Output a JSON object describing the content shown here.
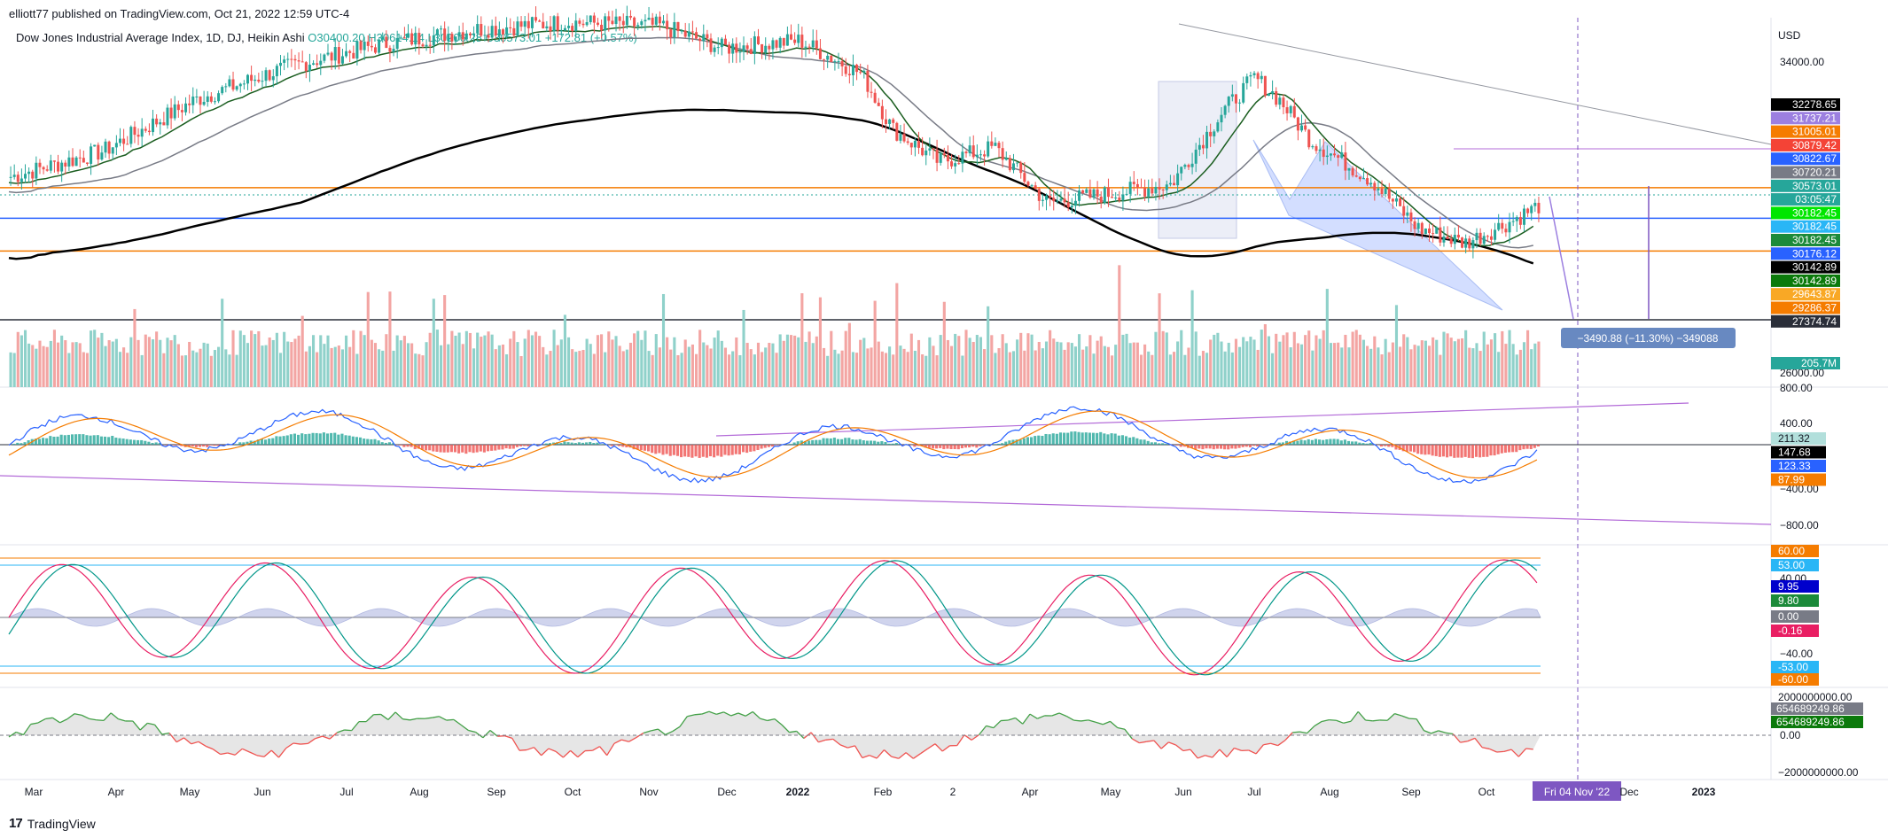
{
  "header": {
    "attribution": "elliott77 published on TradingView.com, Oct 21, 2022 12:59 UTC-4"
  },
  "legend": {
    "symbol": "Dow Jones Industrial Average Index, 1D, DJ, Heikin Ashi",
    "ohlc": "O30400.20 H30614.14 L30206.28 C30573.01 +172.81 (+0.57%)"
  },
  "footer": {
    "brand": "TradingView"
  },
  "colors": {
    "up": "#26a69a",
    "down": "#ef5350",
    "ma200": "#000000",
    "blue_line": "#2962ff",
    "orange_line": "#f57c00",
    "purple": "#b36bd8"
  },
  "chart_data": [
    {
      "type": "candlestick",
      "title": "Dow Jones Industrial Average Index, 1D, DJ, Heikin Ashi",
      "currency": "USD",
      "ylim": [
        26000,
        35500
      ],
      "y_ticks": [
        34000.0,
        26000.0
      ],
      "x_ticks": [
        "Mar",
        "Apr",
        "May",
        "Jun",
        "Jul",
        "Aug",
        "Sep",
        "Oct",
        "Nov",
        "Dec",
        "2022",
        "Feb",
        "2",
        "Apr",
        "May",
        "Jun",
        "Jul",
        "Aug",
        "Sep",
        "Oct",
        "Fri 04 Nov '22",
        "Dec",
        "2023"
      ],
      "price_labels": [
        {
          "value": "32278.65",
          "color": "#000000"
        },
        {
          "value": "31737.21",
          "color": "#9c7fe0"
        },
        {
          "value": "31005.01",
          "color": "#f57c00"
        },
        {
          "value": "30879.42",
          "color": "#f44336"
        },
        {
          "value": "30822.67",
          "color": "#2962ff"
        },
        {
          "value": "30720.21",
          "color": "#787b86"
        },
        {
          "value": "30573.01",
          "color": "#26a69a"
        },
        {
          "value": "03:05:47",
          "color": "#26a69a"
        },
        {
          "value": "30182.45",
          "color": "#00e600"
        },
        {
          "value": "30182.45",
          "color": "#29b6f6"
        },
        {
          "value": "30182.45",
          "color": "#1b8a3a"
        },
        {
          "value": "30176.12",
          "color": "#2962ff"
        },
        {
          "value": "30142.89",
          "color": "#000000"
        },
        {
          "value": "30142.89",
          "color": "#0b7a0b"
        },
        {
          "value": "29643.87",
          "color": "#f9a825"
        },
        {
          "value": "29286.37",
          "color": "#f57c00"
        },
        {
          "value": "27374.74",
          "color": "#2a2e39"
        },
        {
          "value": "205.7M",
          "color": "#26a69a"
        }
      ],
      "horizontal_levels": [
        {
          "name": "orange-upper",
          "value": 31005.01
        },
        {
          "name": "blue",
          "value": 30176.12
        },
        {
          "name": "orange-lower",
          "value": 29286.37
        },
        {
          "name": "dark",
          "value": 27374.74
        }
      ],
      "measure_label": "−3490.88 (−11.30%) −349088",
      "volume_label": "205.7M"
    },
    {
      "type": "macd",
      "y_ticks": [
        "800.00",
        "400.00",
        "−400.00",
        "−800.00"
      ],
      "labels": [
        {
          "value": "211.32",
          "color": "#b2dfdb"
        },
        {
          "value": "147.68",
          "color": "#000000"
        },
        {
          "value": "123.33",
          "color": "#2962ff"
        },
        {
          "value": "87.99",
          "color": "#f57c00"
        }
      ]
    },
    {
      "type": "oscillator",
      "y_ticks": [
        "40.00",
        "−40.00"
      ],
      "labels": [
        {
          "value": "60.00",
          "color": "#f57c00"
        },
        {
          "value": "53.00",
          "color": "#29b6f6"
        },
        {
          "value": "9.95",
          "color": "#0000cc"
        },
        {
          "value": "9.80",
          "color": "#1b8a3a"
        },
        {
          "value": "0.00",
          "color": "#787b86"
        },
        {
          "value": "-0.16",
          "color": "#e91e63"
        },
        {
          "value": "-53.00",
          "color": "#29b6f6"
        },
        {
          "value": "-60.00",
          "color": "#f57c00"
        }
      ]
    },
    {
      "type": "area",
      "y_ticks": [
        "2000000000.00",
        "0.00",
        "−2000000000.00"
      ],
      "labels": [
        {
          "value": "654689249.86",
          "color": "#787b86"
        },
        {
          "value": "654689249.86",
          "color": "#0b7a0b"
        }
      ]
    }
  ]
}
